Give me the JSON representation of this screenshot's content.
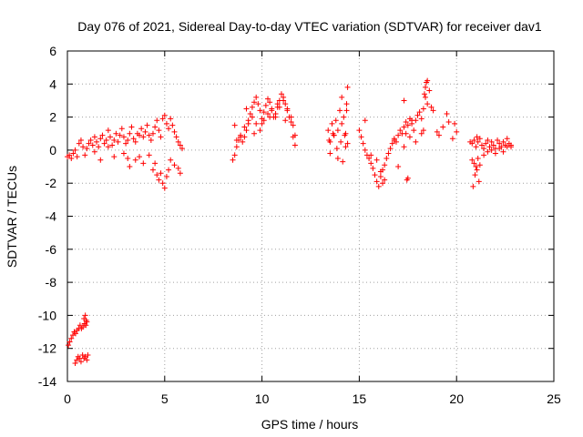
{
  "chart_data": {
    "type": "scatter",
    "title": "Day 076 of 2021, Sidereal Day-to-day VTEC variation (SDTVAR) for receiver dav1",
    "xlabel": "GPS time / hours",
    "ylabel": "SDTVAR / TECUs",
    "xlim": [
      0,
      25
    ],
    "ylim": [
      -14,
      6
    ],
    "xticks": [
      0,
      5,
      10,
      15,
      20,
      25
    ],
    "yticks": [
      -14,
      -12,
      -10,
      -8,
      -6,
      -4,
      -2,
      0,
      2,
      4,
      6
    ],
    "xtick_labels": [
      "0",
      "5",
      "10",
      "15",
      "20",
      "25"
    ],
    "ytick_labels": [
      "-14",
      "-12",
      "-10",
      "-8",
      "-6",
      "-4",
      "-2",
      "0",
      "2",
      "4",
      "6"
    ],
    "grid": true,
    "marker": "plus",
    "marker_color": "#ff0000",
    "series": [
      {
        "name": "dav1",
        "x": [
          0.0,
          0.1,
          0.2,
          0.3,
          0.4,
          0.5,
          0.6,
          0.7,
          0.8,
          0.9,
          1.0,
          1.1,
          1.2,
          1.3,
          1.4,
          1.5,
          1.6,
          1.7,
          1.8,
          1.9,
          2.0,
          2.1,
          2.2,
          2.3,
          2.4,
          2.5,
          2.6,
          2.7,
          2.8,
          2.9,
          3.0,
          3.1,
          3.2,
          3.3,
          3.4,
          3.5,
          3.6,
          3.7,
          3.8,
          3.9,
          4.0,
          4.1,
          4.2,
          4.3,
          4.4,
          4.5,
          4.6,
          4.7,
          4.8,
          4.9,
          5.0,
          5.1,
          5.2,
          5.3,
          5.4,
          5.5,
          5.6,
          5.7,
          5.8,
          5.9,
          1.4,
          1.7,
          2.1,
          2.4,
          2.9,
          3.1,
          3.2,
          3.5,
          3.7,
          3.9,
          4.2,
          4.4,
          4.5,
          4.6,
          4.7,
          4.8,
          4.9,
          5.0,
          5.1,
          5.2,
          5.3,
          5.5,
          5.7,
          5.8,
          0.05,
          0.12,
          0.2,
          0.28,
          0.35,
          0.42,
          0.5,
          0.58,
          0.65,
          0.72,
          0.8,
          0.88,
          0.95,
          1.0,
          0.85,
          0.92,
          0.97,
          0.4,
          0.48,
          0.55,
          0.62,
          0.7,
          0.78,
          0.85,
          0.92,
          1.0,
          1.05,
          8.5,
          8.6,
          8.7,
          8.8,
          8.9,
          9.0,
          9.1,
          9.2,
          9.3,
          9.4,
          9.5,
          9.6,
          9.7,
          9.8,
          9.9,
          10.0,
          10.1,
          10.2,
          10.3,
          10.4,
          10.5,
          10.6,
          10.7,
          10.8,
          10.9,
          11.0,
          11.1,
          11.2,
          11.3,
          11.4,
          11.5,
          11.6,
          11.7,
          8.7,
          8.9,
          9.1,
          9.3,
          9.5,
          9.7,
          9.9,
          10.1,
          10.3,
          10.5,
          10.7,
          10.9,
          11.1,
          11.3,
          11.5,
          11.7,
          8.6,
          9.2,
          9.6,
          10.0,
          10.4,
          10.8,
          11.2,
          11.6,
          13.4,
          13.5,
          13.6,
          13.7,
          13.8,
          13.9,
          14.0,
          14.1,
          14.2,
          14.3,
          14.4,
          13.5,
          13.7,
          13.9,
          14.1,
          14.3,
          14.35,
          14.4,
          13.45,
          13.65,
          13.85,
          14.05,
          14.25,
          14.15,
          14.35,
          15.0,
          15.1,
          15.2,
          15.3,
          15.4,
          15.5,
          15.6,
          15.7,
          15.8,
          15.9,
          16.0,
          16.1,
          16.2,
          16.3,
          16.4,
          16.5,
          16.6,
          16.7,
          16.8,
          16.9,
          17.0,
          17.1,
          17.2,
          17.3,
          17.4,
          17.5,
          17.6,
          17.7,
          17.8,
          17.9,
          18.0,
          18.1,
          18.2,
          18.3,
          18.4,
          18.5,
          18.6,
          18.7,
          15.3,
          15.6,
          15.9,
          16.1,
          16.2,
          16.3,
          17.0,
          17.3,
          17.6,
          17.9,
          18.2,
          18.3,
          18.4,
          18.45,
          18.35,
          18.5,
          16.8,
          17.3,
          17.4,
          17.7,
          18.8,
          19.0,
          19.1,
          19.3,
          19.5,
          19.6,
          19.8,
          19.9,
          20.0,
          17.45,
          17.5,
          20.7,
          20.8,
          20.9,
          21.0,
          21.1,
          21.2,
          21.3,
          21.4,
          21.5,
          21.6,
          21.7,
          21.8,
          21.9,
          22.0,
          22.1,
          22.2,
          22.3,
          22.4,
          22.5,
          22.6,
          22.7,
          22.8,
          20.8,
          20.9,
          21.0,
          21.1,
          21.2,
          21.4,
          21.6,
          21.8,
          22.0,
          22.2,
          22.4,
          22.6,
          22.8,
          20.85,
          20.95,
          21.05,
          21.15,
          21.05
        ],
        "y": [
          -0.4,
          -0.3,
          -0.5,
          -0.2,
          0.0,
          -0.4,
          0.4,
          0.6,
          0.2,
          -0.3,
          0.1,
          0.4,
          0.6,
          0.3,
          0.8,
          0.5,
          0.2,
          0.7,
          0.9,
          0.4,
          0.6,
          1.2,
          0.8,
          0.3,
          0.6,
          1.0,
          0.5,
          0.9,
          1.3,
          0.8,
          0.4,
          0.6,
          1.0,
          1.4,
          0.7,
          0.5,
          1.0,
          0.9,
          1.3,
          0.8,
          1.1,
          1.5,
          0.9,
          0.6,
          1.0,
          1.4,
          1.8,
          1.2,
          0.8,
          1.9,
          2.1,
          1.6,
          1.3,
          1.9,
          1.5,
          1.1,
          0.8,
          0.5,
          0.3,
          0.1,
          -0.1,
          -0.6,
          0.2,
          -0.4,
          -0.2,
          -0.5,
          -1.0,
          -0.6,
          -0.4,
          -0.8,
          -0.3,
          -1.2,
          -0.8,
          -1.5,
          -1.8,
          -1.4,
          -2.0,
          -2.3,
          -1.6,
          -1.2,
          -0.6,
          -0.9,
          -1.1,
          -1.4,
          -11.8,
          -11.6,
          -11.4,
          -11.2,
          -11.0,
          -11.1,
          -10.9,
          -10.8,
          -10.6,
          -10.8,
          -10.7,
          -10.5,
          -10.6,
          -10.4,
          -10.2,
          -10.0,
          -10.3,
          -12.9,
          -12.7,
          -12.5,
          -12.6,
          -12.8,
          -12.4,
          -12.6,
          -12.5,
          -12.7,
          -12.4,
          -0.6,
          -0.3,
          0.2,
          0.6,
          0.9,
          0.5,
          0.8,
          1.2,
          1.6,
          2.2,
          2.6,
          2.9,
          3.2,
          2.8,
          2.4,
          1.9,
          2.3,
          2.7,
          3.1,
          2.9,
          2.5,
          2.0,
          2.2,
          2.6,
          3.0,
          3.4,
          3.2,
          2.8,
          2.4,
          2.0,
          1.7,
          1.5,
          0.3,
          0.6,
          0.8,
          1.4,
          1.8,
          2.0,
          1.6,
          1.2,
          1.8,
          2.2,
          2.4,
          2.0,
          2.6,
          3.0,
          2.5,
          2.0,
          0.9,
          1.5,
          2.5,
          1.0,
          1.6,
          2.0,
          2.8,
          1.8,
          0.8,
          1.2,
          0.5,
          1.6,
          0.9,
          1.8,
          1.2,
          2.4,
          3.2,
          2.0,
          1.0,
          0.4,
          -0.2,
          0.9,
          -0.5,
          1.6,
          0.2,
          2.8,
          3.8,
          0.6,
          1.0,
          0.1,
          0.5,
          0.9,
          -0.7,
          2.4,
          1.2,
          0.8,
          0.4,
          0.0,
          -0.3,
          -0.5,
          -0.8,
          -1.1,
          -1.5,
          -1.9,
          -2.2,
          -1.6,
          -1.2,
          -0.9,
          -0.5,
          -0.2,
          0.1,
          0.4,
          0.7,
          0.5,
          0.9,
          1.2,
          1.0,
          1.4,
          1.7,
          1.5,
          1.9,
          1.6,
          1.2,
          1.8,
          2.1,
          2.3,
          1.9,
          2.5,
          3.2,
          4.2,
          3.6,
          2.6,
          1.8,
          -0.3,
          -0.6,
          -1.3,
          -2.0,
          -1.8,
          -1.0,
          0.2,
          0.8,
          0.5,
          1.0,
          1.2,
          3.8,
          4.1,
          3.4,
          2.8,
          0.6,
          3.0,
          1.0,
          1.8,
          2.4,
          1.1,
          0.9,
          1.4,
          2.2,
          1.7,
          0.7,
          1.6,
          1.1,
          -1.8,
          -1.7,
          0.5,
          0.4,
          0.6,
          0.2,
          0.5,
          0.7,
          0.3,
          0.1,
          0.4,
          0.6,
          0.2,
          0.5,
          0.3,
          0.1,
          0.6,
          0.4,
          0.2,
          0.5,
          0.3,
          0.7,
          0.4,
          0.2,
          -0.6,
          -0.8,
          -1.0,
          -0.5,
          -0.9,
          -0.3,
          -0.1,
          0.0,
          -0.2,
          0.1,
          -0.1,
          0.2,
          0.3,
          -2.2,
          -1.5,
          -1.2,
          -1.9,
          0.8
        ]
      }
    ]
  }
}
